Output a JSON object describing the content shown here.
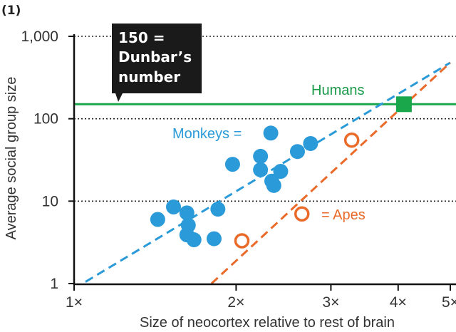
{
  "panel_label": "(1)",
  "chart_data": {
    "type": "scatter",
    "xlabel": "Size of neocortex relative to rest of brain",
    "ylabel": "Average social group size",
    "x_scale": "log",
    "y_scale": "log",
    "xlim": [
      1,
      5
    ],
    "ylim": [
      1,
      1000
    ],
    "x_ticks": [
      {
        "value": 1,
        "label": "1×"
      },
      {
        "value": 2,
        "label": "2×"
      },
      {
        "value": 3,
        "label": "3×"
      },
      {
        "value": 4,
        "label": "4×"
      },
      {
        "value": 5,
        "label": "5×"
      }
    ],
    "y_ticks": [
      {
        "value": 1,
        "label": "1"
      },
      {
        "value": 10,
        "label": "10"
      },
      {
        "value": 100,
        "label": "100"
      },
      {
        "value": 1000,
        "label": "1,000"
      }
    ],
    "grid": "dotted horizontal at 10, 100, 1,000",
    "series": [
      {
        "name": "Monkeys",
        "marker": "filled-circle",
        "color": "#2a9ad8",
        "points": [
          {
            "x": 1.43,
            "y": 6.0
          },
          {
            "x": 1.53,
            "y": 8.5
          },
          {
            "x": 1.62,
            "y": 7.2
          },
          {
            "x": 1.63,
            "y": 5.1
          },
          {
            "x": 1.62,
            "y": 3.9
          },
          {
            "x": 1.67,
            "y": 3.4
          },
          {
            "x": 1.82,
            "y": 3.5
          },
          {
            "x": 1.85,
            "y": 8.0
          },
          {
            "x": 1.97,
            "y": 28
          },
          {
            "x": 2.22,
            "y": 35
          },
          {
            "x": 2.22,
            "y": 24
          },
          {
            "x": 2.33,
            "y": 17.5
          },
          {
            "x": 2.35,
            "y": 15.5
          },
          {
            "x": 2.42,
            "y": 23
          },
          {
            "x": 2.32,
            "y": 67
          },
          {
            "x": 2.6,
            "y": 40
          },
          {
            "x": 2.75,
            "y": 50
          }
        ]
      },
      {
        "name": "Apes",
        "marker": "open-circle",
        "color": "#ea6a2a",
        "points": [
          {
            "x": 2.05,
            "y": 3.3
          },
          {
            "x": 2.65,
            "y": 7.0
          },
          {
            "x": 3.28,
            "y": 55
          }
        ]
      },
      {
        "name": "Humans",
        "marker": "filled-square",
        "color": "#1aa64a",
        "points": [
          {
            "x": 4.1,
            "y": 150
          }
        ]
      }
    ],
    "trend_lines": [
      {
        "series": "Monkeys",
        "style": "dashed",
        "color": "#2a9ad8",
        "from": [
          1.05,
          1.05
        ],
        "to": [
          5,
          480
        ]
      },
      {
        "series": "Apes",
        "style": "dashed",
        "color": "#ea6a2a",
        "from": [
          1.8,
          1.0
        ],
        "to": [
          5,
          480
        ]
      }
    ],
    "reference_line": {
      "y": 150,
      "color": "#1aa64a",
      "label": "Humans"
    },
    "annotations": {
      "monkeys_legend": "Monkeys =",
      "apes_legend": "= Apes",
      "callout": [
        "150 =",
        "Dunbar’s",
        "number"
      ]
    }
  }
}
